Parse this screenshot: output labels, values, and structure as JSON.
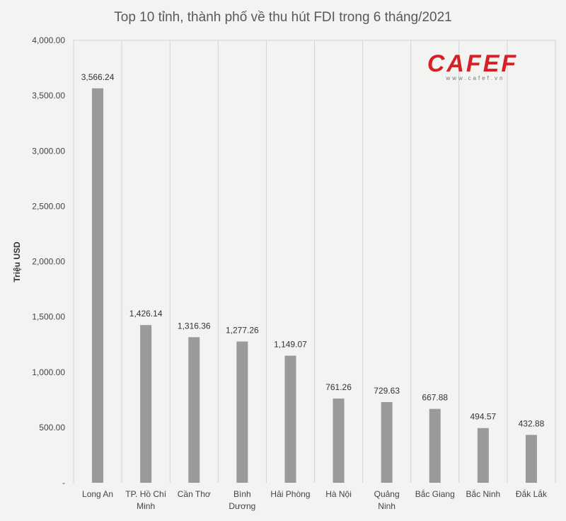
{
  "chart_data": {
    "type": "bar",
    "title": "Top 10 tỉnh, thành phố về thu hút FDI trong 6 tháng/2021",
    "ylabel": "Triệu USD",
    "xlabel": "",
    "categories": [
      [
        "Long An"
      ],
      [
        "TP. Hồ Chí",
        "Minh"
      ],
      [
        "Cần Thơ"
      ],
      [
        "Bình",
        "Dương"
      ],
      [
        "Hải Phòng"
      ],
      [
        "Hà Nội"
      ],
      [
        "Quảng",
        "Ninh"
      ],
      [
        "Bắc Giang"
      ],
      [
        "Bắc Ninh"
      ],
      [
        "Đắk Lắk"
      ]
    ],
    "values": [
      3566.24,
      1426.14,
      1316.36,
      1277.26,
      1149.07,
      761.26,
      729.63,
      667.88,
      494.57,
      432.88
    ],
    "value_labels": [
      "3,566.24",
      "1,426.14",
      "1,316.36",
      "1,277.26",
      "1,149.07",
      "761.26",
      "729.63",
      "667.88",
      "494.57",
      "432.88"
    ],
    "ylim": [
      0,
      4000
    ],
    "yticks": [
      0,
      500,
      1000,
      1500,
      2000,
      2500,
      3000,
      3500,
      4000
    ],
    "ytick_labels": [
      "-",
      "500.00",
      "1,000.00",
      "1,500.00",
      "2,000.00",
      "2,500.00",
      "3,000.00",
      "3,500.00",
      "4,000.00"
    ],
    "grid": "vertical-category-separators",
    "bar_color": "#9a9a9a",
    "legend": "none"
  },
  "logo": {
    "text": "CAFEF",
    "subtext": "www.cafef.vn",
    "color": "#d71f26"
  }
}
